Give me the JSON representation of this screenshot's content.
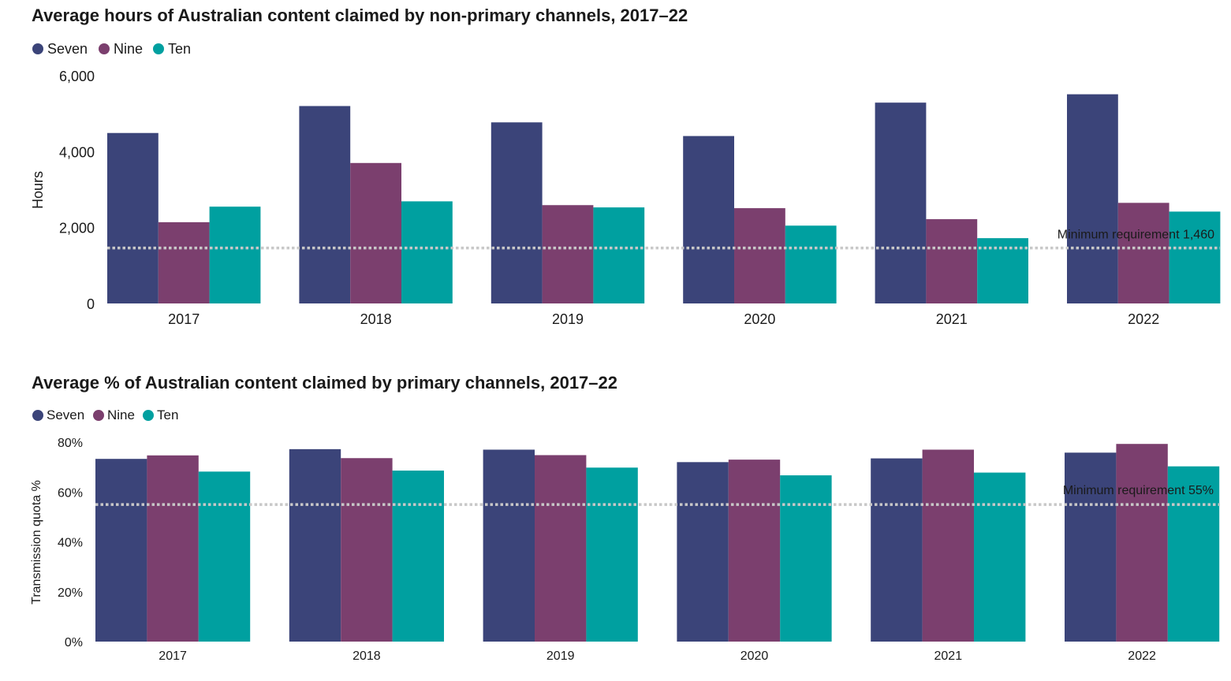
{
  "colors": {
    "Seven": "#3b4479",
    "Nine": "#7b3f6e",
    "Ten": "#00a0a0",
    "reference_line": "#c8c8c8"
  },
  "chart_data": [
    {
      "type": "bar",
      "title": "Average hours of Australian content claimed by non-primary channels, 2017–22",
      "ylabel": "Hours",
      "xlabel": "",
      "ylim": [
        0,
        6000
      ],
      "yticks": [
        "0",
        "2,000",
        "4,000",
        "6,000"
      ],
      "ytick_values": [
        0,
        2000,
        4000,
        6000
      ],
      "categories": [
        "2017",
        "2018",
        "2019",
        "2020",
        "2021",
        "2022"
      ],
      "series": [
        {
          "name": "Seven",
          "values": [
            4490,
            5200,
            4770,
            4410,
            5290,
            5510
          ]
        },
        {
          "name": "Nine",
          "values": [
            2140,
            3700,
            2590,
            2510,
            2220,
            2650
          ]
        },
        {
          "name": "Ten",
          "values": [
            2550,
            2690,
            2530,
            2050,
            1720,
            2420
          ]
        }
      ],
      "reference_line": {
        "value": 1460,
        "label": "Minimum requirement 1,460"
      },
      "legend_position": "top-left",
      "grid": false
    },
    {
      "type": "bar",
      "title": "Average % of Australian content claimed by primary channels, 2017–22",
      "ylabel": "Transmission quota %",
      "xlabel": "",
      "ylim": [
        0,
        80
      ],
      "yticks": [
        "0%",
        "20%",
        "40%",
        "60%",
        "80%"
      ],
      "ytick_values": [
        0,
        20,
        40,
        60,
        80
      ],
      "categories": [
        "2017",
        "2018",
        "2019",
        "2020",
        "2021",
        "2022"
      ],
      "series": [
        {
          "name": "Seven",
          "values": [
            73.3,
            77.2,
            77.0,
            72.0,
            73.5,
            75.8
          ]
        },
        {
          "name": "Nine",
          "values": [
            74.7,
            73.6,
            74.8,
            73.0,
            77.0,
            79.3
          ]
        },
        {
          "name": "Ten",
          "values": [
            68.2,
            68.6,
            69.8,
            66.7,
            67.8,
            70.3
          ]
        }
      ],
      "reference_line": {
        "value": 55,
        "label": "Minimum requirement 55%"
      },
      "legend_position": "top-left",
      "grid": false
    }
  ]
}
